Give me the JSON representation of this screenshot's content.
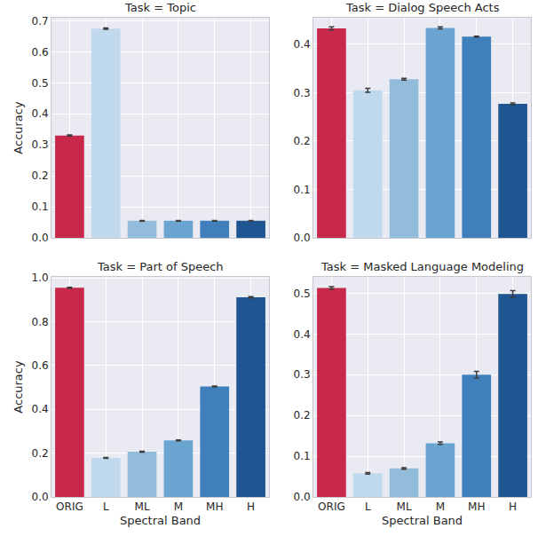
{
  "chart_data": [
    {
      "type": "bar",
      "title": "Task = Topic",
      "y_label": "Accuracy",
      "categories": [
        "ORIG",
        "L",
        "ML",
        "M",
        "MH",
        "H"
      ],
      "values": [
        0.33,
        0.675,
        0.055,
        0.055,
        0.055,
        0.055
      ],
      "error": [
        0.002,
        0.002,
        0.001,
        0.001,
        0.001,
        0.001
      ],
      "colors": [
        "#c8294b",
        "#c1d9ec",
        "#93bcdb",
        "#6aa5d2",
        "#3f7fbb",
        "#1f5692"
      ],
      "ylim": [
        0,
        0.71
      ],
      "yticks": [
        {
          "value": 0,
          "label": "0.0"
        },
        0.1,
        0.2,
        0.3,
        0.4,
        0.5,
        0.6,
        0.7
      ],
      "grid": true,
      "tick_labels": "y"
    },
    {
      "type": "bar",
      "title": "Task = Dialog Speech Acts",
      "categories": [
        "ORIG",
        "L",
        "ML",
        "M",
        "MH",
        "H"
      ],
      "values": [
        0.433,
        0.305,
        0.328,
        0.434,
        0.416,
        0.277
      ],
      "error": [
        0.003,
        0.004,
        0.002,
        0.002,
        0.001,
        0.002
      ],
      "colors": [
        "#c8294b",
        "#c1d9ec",
        "#93bcdb",
        "#6aa5d2",
        "#3f7fbb",
        "#1f5692"
      ],
      "ylim": [
        0,
        0.455
      ],
      "yticks": [
        {
          "value": 0,
          "label": "0.0"
        },
        0.1,
        0.2,
        0.3,
        0.4
      ],
      "grid": true,
      "tick_labels": "y"
    },
    {
      "type": "bar",
      "title": "Task = Part of Speech",
      "x_label": "Spectral Band",
      "y_label": "Accuracy",
      "categories": [
        "ORIG",
        "L",
        "ML",
        "M",
        "MH",
        "H"
      ],
      "values": [
        0.955,
        0.178,
        0.207,
        0.258,
        0.505,
        0.912
      ],
      "error": [
        0.002,
        0.002,
        0.002,
        0.002,
        0.002,
        0.003
      ],
      "colors": [
        "#c8294b",
        "#c1d9ec",
        "#93bcdb",
        "#6aa5d2",
        "#3f7fbb",
        "#1f5692"
      ],
      "ylim": [
        0,
        1.005
      ],
      "yticks": [
        {
          "value": 0,
          "label": "0.0"
        },
        0.2,
        0.4,
        0.6,
        0.8,
        {
          "value": 1,
          "label": "1.0"
        }
      ],
      "grid": true
    },
    {
      "type": "bar",
      "title": "Task = Masked Language Modeling",
      "x_label": "Spectral Band",
      "categories": [
        "ORIG",
        "L",
        "ML",
        "M",
        "MH",
        "H"
      ],
      "values": [
        0.513,
        0.058,
        0.07,
        0.132,
        0.3,
        0.498
      ],
      "error": [
        0.003,
        0.002,
        0.002,
        0.003,
        0.008,
        0.008
      ],
      "colors": [
        "#c8294b",
        "#c1d9ec",
        "#93bcdb",
        "#6aa5d2",
        "#3f7fbb",
        "#1f5692"
      ],
      "ylim": [
        0,
        0.54
      ],
      "yticks": [
        {
          "value": 0,
          "label": "0.0"
        },
        0.1,
        0.2,
        0.3,
        0.4,
        0.5
      ],
      "grid": true
    }
  ]
}
